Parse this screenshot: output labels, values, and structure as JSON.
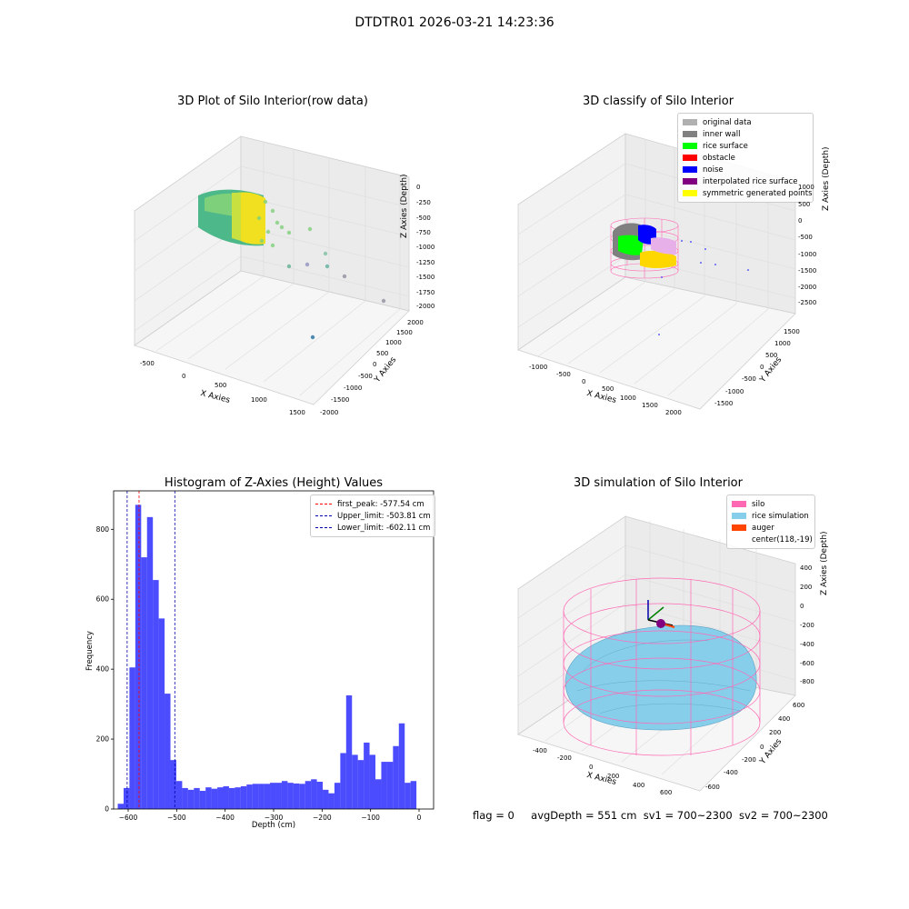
{
  "suptitle": "DTDTR01 2026-03-21 14:23:36",
  "footer": {
    "flag": "flag = 0",
    "avg_depth": "avgDepth = 551 cm",
    "sv1": "sv1 = 700~2300",
    "sv2": "sv2 = 700~2300"
  },
  "plots": {
    "raw": {
      "title": "3D Plot of Silo Interior(row data)",
      "xlabel": "X Axies",
      "ylabel": "Y Axies",
      "zlabel": "Z Axies (Depth)",
      "xticks": [
        "-500",
        "0",
        "500",
        "1000",
        "1500"
      ],
      "yticks": [
        "-2000",
        "-1500",
        "-1000",
        "-500",
        "0",
        "500",
        "1000",
        "1500",
        "2000"
      ],
      "zticks": [
        "0",
        "-250",
        "-500",
        "-750",
        "-1000",
        "-1250",
        "-1500",
        "-1750",
        "-2000"
      ]
    },
    "classify": {
      "title": "3D classify of Silo Interior",
      "xlabel": "X Axies",
      "ylabel": "Y Axies",
      "zlabel": "Z Axies (Depth)",
      "xticks": [
        "-1000",
        "-500",
        "0",
        "500",
        "1000",
        "1500",
        "2000"
      ],
      "yticks": [
        "-1500",
        "-1000",
        "-500",
        "0",
        "500",
        "1000",
        "1500"
      ],
      "zticks": [
        "1000",
        "500",
        "0",
        "-500",
        "-1000",
        "-1500",
        "-2000",
        "-2500"
      ],
      "legend": [
        {
          "label": "original data",
          "color": "#b0b0b0"
        },
        {
          "label": "inner wall",
          "color": "#808080"
        },
        {
          "label": "rice surface",
          "color": "#00ff00"
        },
        {
          "label": "obstacle",
          "color": "#ff0000"
        },
        {
          "label": "noise",
          "color": "#0000ff"
        },
        {
          "label": "interpolated rice surface",
          "color": "#800080"
        },
        {
          "label": "symmetric generated points",
          "color": "#ffff00"
        }
      ]
    },
    "simulation": {
      "title": "3D simulation of Silo Interior",
      "xlabel": "X Axies",
      "ylabel": "Y Axies",
      "zlabel": "Z Axies (Depth)",
      "xticks": [
        "-400",
        "-200",
        "0",
        "200",
        "400",
        "600"
      ],
      "yticks": [
        "-600",
        "-400",
        "-200",
        "0",
        "200",
        "400",
        "600"
      ],
      "zticks": [
        "400",
        "200",
        "0",
        "-200",
        "-400",
        "-600",
        "-800"
      ],
      "legend": [
        {
          "label": "silo",
          "color": "#ff69b4"
        },
        {
          "label": "rice simulation",
          "color": "#87ceeb"
        },
        {
          "label": "auger",
          "color": "#ff4500"
        },
        {
          "label": "center(118,-19)",
          "color": ""
        }
      ]
    }
  },
  "chart_data": {
    "type": "bar",
    "title": "Histogram of Z-Axies (Height) Values",
    "xlabel": "Depth (cm)",
    "ylabel": "Frequency",
    "xlim": [
      -630,
      30
    ],
    "ylim": [
      0,
      910
    ],
    "xticks": [
      -600,
      -500,
      -400,
      -300,
      -200,
      -100,
      0
    ],
    "yticks": [
      0,
      200,
      400,
      600,
      800
    ],
    "bar_color": "#0000ff",
    "bin_width": 12.08,
    "bin_start": -621.5,
    "values": [
      15,
      60,
      405,
      870,
      720,
      835,
      655,
      545,
      330,
      140,
      80,
      60,
      55,
      60,
      52,
      62,
      58,
      62,
      65,
      60,
      62,
      65,
      70,
      72,
      72,
      72,
      75,
      75,
      80,
      75,
      73,
      72,
      80,
      85,
      78,
      55,
      45,
      75,
      160,
      325,
      155,
      140,
      190,
      155,
      85,
      135,
      135,
      180,
      245,
      75,
      80
    ],
    "lines": [
      {
        "label": "first_peak: -577.54 cm",
        "x": -577.54,
        "color": "#ff0000"
      },
      {
        "label": "Upper_limit: -503.81 cm",
        "x": -503.81,
        "color": "#0000aa"
      },
      {
        "label": "Lower_limit: -602.11 cm",
        "x": -602.11,
        "color": "#0000aa"
      }
    ],
    "legend_position": "top-right"
  }
}
